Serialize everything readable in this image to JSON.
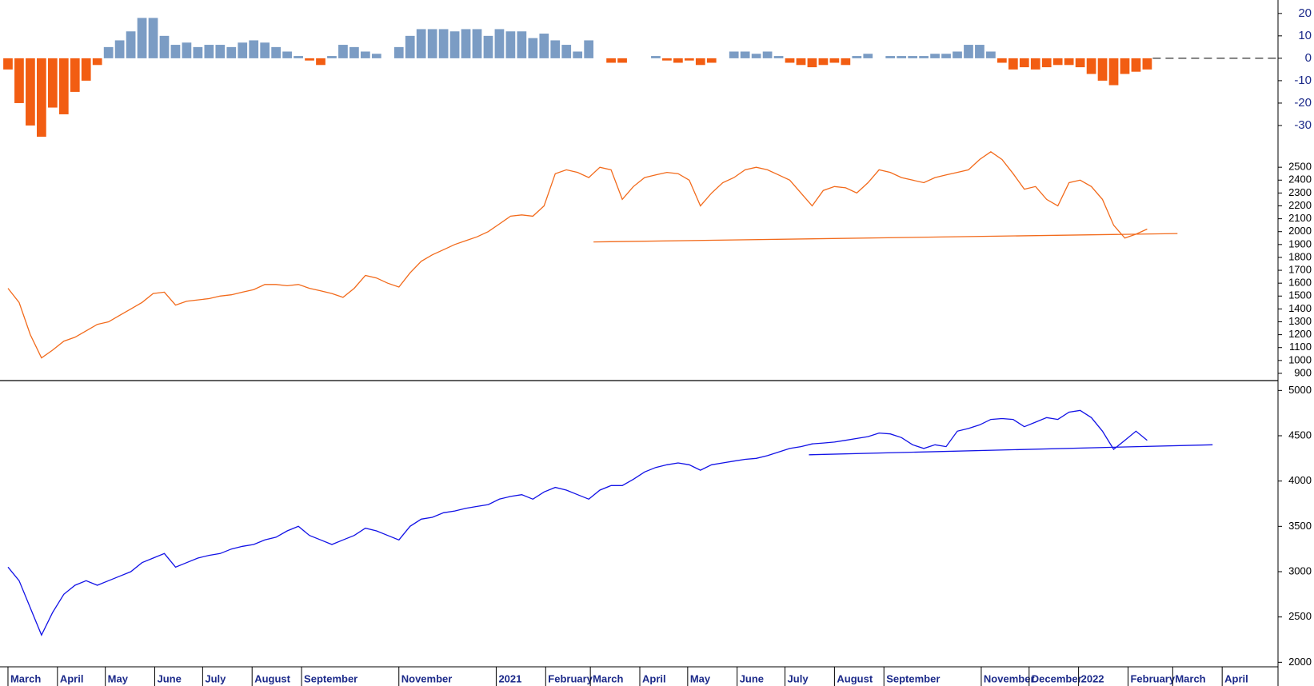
{
  "chart_data": [
    {
      "type": "bar",
      "positive_color": "#7b9cc4",
      "negative_color": "#f25d12",
      "xlim": [
        -5,
        796
      ],
      "ylim": [
        -40,
        26
      ],
      "yticks": [
        20,
        10,
        0,
        -10,
        -20,
        -30
      ],
      "x": [
        0,
        7,
        14,
        21,
        28,
        35,
        42,
        49,
        56,
        63,
        70,
        77,
        84,
        91,
        98,
        105,
        112,
        119,
        126,
        133,
        140,
        147,
        154,
        161,
        168,
        175,
        182,
        189,
        196,
        203,
        210,
        217,
        224,
        231,
        238,
        245,
        252,
        259,
        266,
        273,
        280,
        287,
        294,
        301,
        308,
        315,
        322,
        329,
        336,
        343,
        350,
        357,
        364,
        371,
        378,
        385,
        392,
        399,
        406,
        413,
        420,
        427,
        434,
        441,
        448,
        455,
        462,
        469,
        476,
        483,
        490,
        497,
        504,
        511,
        518,
        525,
        532,
        539,
        546,
        553,
        560,
        567,
        574,
        581,
        588,
        595,
        602,
        609,
        616,
        623,
        630,
        637,
        644,
        651,
        658,
        665,
        672,
        679,
        686,
        693,
        700,
        707,
        714
      ],
      "values": [
        -5,
        -20,
        -30,
        -35,
        -22,
        -25,
        -15,
        -10,
        -3,
        5,
        8,
        12,
        18,
        18,
        10,
        6,
        7,
        5,
        6,
        6,
        5,
        7,
        8,
        7,
        5,
        3,
        1,
        -1,
        -3,
        1,
        6,
        5,
        3,
        2,
        0,
        5,
        10,
        13,
        13,
        13,
        12,
        13,
        13,
        10,
        13,
        12,
        12,
        9,
        11,
        8,
        6,
        3,
        8,
        0,
        -2,
        -2,
        0,
        0,
        1,
        -1,
        -2,
        -1,
        -3,
        -2,
        0,
        3,
        3,
        2,
        3,
        1,
        -2,
        -3,
        -4,
        -3,
        -2,
        -3,
        1,
        2,
        0,
        1,
        1,
        1,
        1,
        2,
        2,
        3,
        6,
        6,
        3,
        -2,
        -5,
        -4,
        -5,
        -4,
        -3,
        -3,
        -4,
        -7,
        -10,
        -12,
        -7,
        -6,
        -5
      ]
    },
    {
      "type": "line",
      "color": "#f26a1b",
      "xlim": [
        -5,
        796
      ],
      "ylim": [
        850,
        2650
      ],
      "yticks": [
        2500,
        2400,
        2300,
        2200,
        2100,
        2000,
        1900,
        1800,
        1700,
        1600,
        1500,
        1400,
        1300,
        1200,
        1100,
        1000,
        900
      ],
      "x": [
        0,
        7,
        14,
        21,
        28,
        35,
        42,
        49,
        56,
        63,
        70,
        77,
        84,
        91,
        98,
        105,
        112,
        119,
        126,
        133,
        140,
        147,
        154,
        161,
        168,
        175,
        182,
        189,
        196,
        203,
        210,
        217,
        224,
        231,
        238,
        245,
        252,
        259,
        266,
        273,
        280,
        287,
        294,
        301,
        308,
        315,
        322,
        329,
        336,
        343,
        350,
        357,
        364,
        371,
        378,
        385,
        392,
        399,
        406,
        413,
        420,
        427,
        434,
        441,
        448,
        455,
        462,
        469,
        476,
        483,
        490,
        497,
        504,
        511,
        518,
        525,
        532,
        539,
        546,
        553,
        560,
        567,
        574,
        581,
        588,
        595,
        602,
        609,
        616,
        623,
        630,
        637,
        644,
        651,
        658,
        665,
        672,
        679,
        686,
        693,
        700,
        707,
        714
      ],
      "values": [
        1560,
        1450,
        1200,
        1020,
        1080,
        1150,
        1180,
        1230,
        1280,
        1300,
        1350,
        1400,
        1450,
        1520,
        1530,
        1430,
        1460,
        1470,
        1480,
        1500,
        1510,
        1530,
        1550,
        1590,
        1590,
        1580,
        1590,
        1560,
        1540,
        1520,
        1490,
        1560,
        1660,
        1640,
        1600,
        1570,
        1680,
        1770,
        1820,
        1860,
        1900,
        1930,
        1960,
        2000,
        2060,
        2120,
        2130,
        2120,
        2200,
        2450,
        2480,
        2460,
        2420,
        2500,
        2480,
        2250,
        2350,
        2420,
        2440,
        2460,
        2450,
        2400,
        2200,
        2300,
        2380,
        2420,
        2480,
        2500,
        2480,
        2440,
        2400,
        2300,
        2200,
        2320,
        2350,
        2340,
        2300,
        2380,
        2480,
        2460,
        2420,
        2400,
        2380,
        2420,
        2440,
        2460,
        2480,
        2560,
        2620,
        2560,
        2450,
        2330,
        2350,
        2250,
        2200,
        2380,
        2400,
        2350,
        2250,
        2050,
        1950,
        1980,
        2020
      ],
      "trend": {
        "x": [
          367,
          733
        ],
        "values": [
          1920,
          1985
        ]
      }
    },
    {
      "type": "line",
      "color": "#1212e6",
      "xlim": [
        -5,
        796
      ],
      "ylim": [
        1950,
        5100
      ],
      "yticks": [
        5000,
        4500,
        4000,
        3500,
        3000,
        2500,
        2000
      ],
      "xticks": [
        {
          "value": 0,
          "label": "March"
        },
        {
          "value": 31,
          "label": "April"
        },
        {
          "value": 61,
          "label": "May"
        },
        {
          "value": 92,
          "label": "June"
        },
        {
          "value": 122,
          "label": "July"
        },
        {
          "value": 153,
          "label": "August"
        },
        {
          "value": 184,
          "label": "September"
        },
        {
          "value": 245,
          "label": "November"
        },
        {
          "value": 306,
          "label": "2021"
        },
        {
          "value": 337,
          "label": "February"
        },
        {
          "value": 365,
          "label": "March"
        },
        {
          "value": 396,
          "label": "April"
        },
        {
          "value": 426,
          "label": "May"
        },
        {
          "value": 457,
          "label": "June"
        },
        {
          "value": 487,
          "label": "July"
        },
        {
          "value": 518,
          "label": "August"
        },
        {
          "value": 549,
          "label": "September"
        },
        {
          "value": 610,
          "label": "November"
        },
        {
          "value": 640,
          "label": "December"
        },
        {
          "value": 671,
          "label": "2022"
        },
        {
          "value": 702,
          "label": "February"
        },
        {
          "value": 730,
          "label": "March"
        },
        {
          "value": 761,
          "label": "April"
        }
      ],
      "x": [
        0,
        7,
        14,
        21,
        28,
        35,
        42,
        49,
        56,
        63,
        70,
        77,
        84,
        91,
        98,
        105,
        112,
        119,
        126,
        133,
        140,
        147,
        154,
        161,
        168,
        175,
        182,
        189,
        196,
        203,
        210,
        217,
        224,
        231,
        238,
        245,
        252,
        259,
        266,
        273,
        280,
        287,
        294,
        301,
        308,
        315,
        322,
        329,
        336,
        343,
        350,
        357,
        364,
        371,
        378,
        385,
        392,
        399,
        406,
        413,
        420,
        427,
        434,
        441,
        448,
        455,
        462,
        469,
        476,
        483,
        490,
        497,
        504,
        511,
        518,
        525,
        532,
        539,
        546,
        553,
        560,
        567,
        574,
        581,
        588,
        595,
        602,
        609,
        616,
        623,
        630,
        637,
        644,
        651,
        658,
        665,
        672,
        679,
        686,
        693,
        700,
        707,
        714
      ],
      "values": [
        3050,
        2900,
        2600,
        2300,
        2550,
        2750,
        2850,
        2900,
        2850,
        2900,
        2950,
        3000,
        3100,
        3150,
        3200,
        3050,
        3100,
        3150,
        3180,
        3200,
        3250,
        3280,
        3300,
        3350,
        3380,
        3450,
        3500,
        3400,
        3350,
        3300,
        3350,
        3400,
        3480,
        3450,
        3400,
        3350,
        3500,
        3580,
        3600,
        3650,
        3670,
        3700,
        3720,
        3740,
        3800,
        3830,
        3850,
        3800,
        3880,
        3930,
        3900,
        3850,
        3800,
        3900,
        3950,
        3950,
        4020,
        4100,
        4150,
        4180,
        4200,
        4180,
        4120,
        4180,
        4200,
        4220,
        4240,
        4250,
        4280,
        4320,
        4360,
        4380,
        4410,
        4420,
        4430,
        4450,
        4470,
        4490,
        4530,
        4520,
        4480,
        4400,
        4360,
        4400,
        4380,
        4550,
        4580,
        4620,
        4680,
        4690,
        4680,
        4600,
        4650,
        4700,
        4680,
        4760,
        4780,
        4700,
        4550,
        4350,
        4450,
        4550,
        4450
      ],
      "trend": {
        "x": [
          502,
          755
        ],
        "values": [
          4290,
          4400
        ]
      }
    }
  ]
}
